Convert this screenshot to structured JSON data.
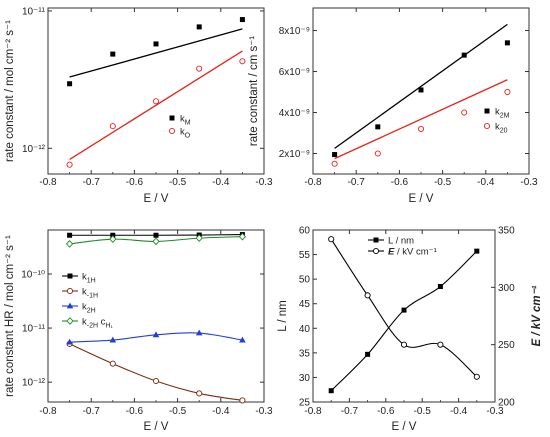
{
  "colors": {
    "black": "#000000",
    "red": "#e8231c",
    "pink": "#e0707a",
    "blue": "#1f3fd6",
    "green": "#1f8a25",
    "brown": "#7a2a12",
    "frame": "#333333"
  },
  "chart_data": [
    {
      "id": "top-left",
      "type": "scatter",
      "xlabel": "E / V",
      "ylabel": "rate constant / mol cm⁻² s⁻¹",
      "xlim": [
        -0.8,
        -0.3
      ],
      "x_ticks": [
        "-0.8",
        "-0.7",
        "-0.6",
        "-0.5",
        "-0.4",
        "-0.3"
      ],
      "y_scale": "log",
      "ylim": [
        6.5e-13,
        1.05e-11
      ],
      "y_ticks": [
        {
          "value": 1e-12,
          "label": "10⁻¹²"
        },
        {
          "value": 1e-11,
          "label": "10⁻¹¹"
        }
      ],
      "legend_position": "center-right",
      "series": [
        {
          "name": "k_M",
          "color": "#000000",
          "marker": "square-filled",
          "points": [
            [
              -0.75,
              2.95e-12
            ],
            [
              -0.65,
              4.85e-12
            ],
            [
              -0.55,
              5.75e-12
            ],
            [
              -0.45,
              7.65e-12
            ],
            [
              -0.35,
              8.65e-12
            ]
          ],
          "fit": [
            [
              -0.75,
              3.3e-12
            ],
            [
              -0.35,
              7.4e-12
            ]
          ]
        },
        {
          "name": "k_O",
          "color": "#e8231c",
          "marker": "circle-open",
          "points": [
            [
              -0.75,
              7.6e-13
            ],
            [
              -0.65,
              1.45e-12
            ],
            [
              -0.55,
              2.2e-12
            ],
            [
              -0.45,
              3.8e-12
            ],
            [
              -0.35,
              4.3e-12
            ]
          ],
          "fit": [
            [
              -0.75,
              8.3e-13
            ],
            [
              -0.35,
              5.1e-12
            ]
          ]
        }
      ]
    },
    {
      "id": "top-right",
      "type": "scatter",
      "xlabel": "E / V",
      "ylabel": "rate constant / cm s⁻¹",
      "xlim": [
        -0.8,
        -0.3
      ],
      "x_ticks": [
        "-0.8",
        "-0.7",
        "-0.6",
        "-0.5",
        "-0.4",
        "-0.3"
      ],
      "y_scale": "linear",
      "ylim": [
        1e-09,
        9.1e-09
      ],
      "y_ticks": [
        {
          "value": 2e-09,
          "label": "2x10⁻⁹"
        },
        {
          "value": 4e-09,
          "label": "4x10⁻⁹"
        },
        {
          "value": 6e-09,
          "label": "6x10⁻⁹"
        },
        {
          "value": 8e-09,
          "label": "8x10⁻⁹"
        }
      ],
      "legend_position": "right",
      "series": [
        {
          "name": "k_2M",
          "color": "#000000",
          "marker": "square-filled",
          "points": [
            [
              -0.75,
              1.95e-09
            ],
            [
              -0.65,
              3.3e-09
            ],
            [
              -0.55,
              5.1e-09
            ],
            [
              -0.45,
              6.8e-09
            ],
            [
              -0.35,
              7.4e-09
            ]
          ],
          "fit": [
            [
              -0.75,
              2.25e-09
            ],
            [
              -0.35,
              8.3e-09
            ]
          ]
        },
        {
          "name": "k_20",
          "color": "#e8231c",
          "marker": "circle-open",
          "points": [
            [
              -0.75,
              1.5e-09
            ],
            [
              -0.65,
              2e-09
            ],
            [
              -0.55,
              3.2e-09
            ],
            [
              -0.45,
              4e-09
            ],
            [
              -0.35,
              5e-09
            ]
          ],
          "fit": [
            [
              -0.75,
              1.75e-09
            ],
            [
              -0.35,
              5.6e-09
            ]
          ]
        }
      ]
    },
    {
      "id": "bottom-left",
      "type": "line",
      "xlabel": "E / V",
      "ylabel": "rate constant HR / mol cm⁻² s⁻¹",
      "xlim": [
        -0.8,
        -0.3
      ],
      "x_ticks": [
        "-0.8",
        "-0.7",
        "-0.6",
        "-0.5",
        "-0.4",
        "-0.3"
      ],
      "y_scale": "log",
      "ylim": [
        4.3e-13,
        6.5e-10
      ],
      "y_ticks": [
        {
          "value": 1e-12,
          "label": "10⁻¹²"
        },
        {
          "value": 1e-11,
          "label": "10⁻¹¹"
        },
        {
          "value": 1e-10,
          "label": "10⁻¹⁰"
        }
      ],
      "legend_position": "center-left",
      "series": [
        {
          "name": "k_1H",
          "color": "#000000",
          "marker": "square-filled",
          "points": [
            [
              -0.75,
              5.2e-10
            ],
            [
              -0.65,
              5.2e-10
            ],
            [
              -0.55,
              5.2e-10
            ],
            [
              -0.45,
              5.25e-10
            ],
            [
              -0.35,
              5.35e-10
            ]
          ]
        },
        {
          "name": "k_-1H",
          "color": "#7a2a12",
          "marker": "circle-open",
          "points": [
            [
              -0.75,
              5.1e-12
            ],
            [
              -0.65,
              2.2e-12
            ],
            [
              -0.55,
              1.05e-12
            ],
            [
              -0.45,
              6.2e-13
            ],
            [
              -0.35,
              4.6e-13
            ]
          ]
        },
        {
          "name": "k_2H",
          "color": "#1f3fd6",
          "marker": "triangle-filled",
          "points": [
            [
              -0.75,
              5.5e-12
            ],
            [
              -0.65,
              6e-12
            ],
            [
              -0.55,
              7.5e-12
            ],
            [
              -0.45,
              8.1e-12
            ],
            [
              -0.35,
              6e-12
            ]
          ]
        },
        {
          "name": "k_-2H c_H₁",
          "color": "#1f8a25",
          "marker": "diamond-open",
          "points": [
            [
              -0.75,
              3.6e-10
            ],
            [
              -0.65,
              4.4e-10
            ],
            [
              -0.55,
              4e-10
            ],
            [
              -0.45,
              4.6e-10
            ],
            [
              -0.35,
              4.9e-10
            ]
          ]
        }
      ]
    },
    {
      "id": "bottom-right",
      "type": "line",
      "xlabel": "E / V",
      "ylabel": "L / nm",
      "ylabel_right": "E / kV cm⁻¹",
      "xlim": [
        -0.8,
        -0.3
      ],
      "x_ticks": [
        "-0.8",
        "-0.7",
        "-0.6",
        "-0.5",
        "-0.4",
        "-0.3"
      ],
      "y_scale": "linear",
      "ylim": [
        25,
        60
      ],
      "y_ticks": [
        {
          "value": 25,
          "label": "25"
        },
        {
          "value": 30,
          "label": "30"
        },
        {
          "value": 35,
          "label": "35"
        },
        {
          "value": 40,
          "label": "40"
        },
        {
          "value": 45,
          "label": "45"
        },
        {
          "value": 50,
          "label": "50"
        },
        {
          "value": 55,
          "label": "55"
        },
        {
          "value": 60,
          "label": "60"
        }
      ],
      "y2lim": [
        200,
        350
      ],
      "y2_ticks": [
        {
          "value": 200,
          "label": "200"
        },
        {
          "value": 250,
          "label": "250"
        },
        {
          "value": 300,
          "label": "300"
        },
        {
          "value": 350,
          "label": "350"
        }
      ],
      "legend_position": "top",
      "series": [
        {
          "name": "L / nm",
          "axis": "left",
          "color": "#000000",
          "marker": "square-filled",
          "points": [
            [
              -0.75,
              27.3
            ],
            [
              -0.65,
              34.7
            ],
            [
              -0.55,
              43.7
            ],
            [
              -0.45,
              48.5
            ],
            [
              -0.35,
              55.7
            ]
          ]
        },
        {
          "name": "E / kV cm⁻¹",
          "axis": "right",
          "color": "#000000",
          "marker": "circle-open",
          "points": [
            [
              -0.75,
              342
            ],
            [
              -0.65,
              293
            ],
            [
              -0.55,
              250
            ],
            [
              -0.45,
              250
            ],
            [
              -0.35,
              222
            ]
          ]
        }
      ]
    }
  ]
}
